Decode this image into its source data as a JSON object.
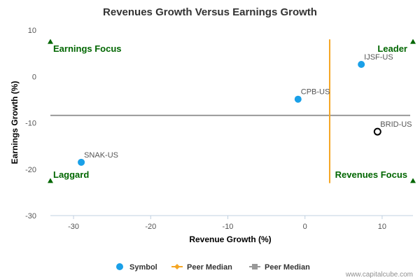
{
  "chart_data": {
    "type": "scatter",
    "title": "Revenues Growth Versus Earnings Growth",
    "xlabel": "Revenue Growth (%)",
    "ylabel": "Earnings Growth (%)",
    "xlim": [
      -33,
      14
    ],
    "ylim": [
      -30,
      10
    ],
    "xticks": [
      -30,
      -20,
      -10,
      0,
      10
    ],
    "yticks": [
      10,
      0,
      -10,
      -20,
      -30
    ],
    "grid": false,
    "legend_position": "bottom",
    "points": [
      {
        "label": "SNAK-US",
        "x": -29.0,
        "y": -18.5,
        "style": "filled"
      },
      {
        "label": "CPB-US",
        "x": -0.9,
        "y": -4.9,
        "style": "filled"
      },
      {
        "label": "IJSF-US",
        "x": 7.3,
        "y": 2.6,
        "style": "filled"
      },
      {
        "label": "BRID-US",
        "x": 9.4,
        "y": -11.9,
        "style": "hollow"
      }
    ],
    "peer_median_x": 3.2,
    "peer_median_x_range": [
      -23,
      8
    ],
    "peer_median_y": -8.4,
    "quadrants": [
      {
        "label": "Earnings Focus",
        "position": "top-left"
      },
      {
        "label": "Leader",
        "position": "top-right"
      },
      {
        "label": "Laggard",
        "position": "bottom-left"
      },
      {
        "label": "Revenues Focus",
        "position": "bottom-right"
      }
    ],
    "legend": [
      {
        "label": "Symbol",
        "marker": "circle",
        "color": "#1aa0e8"
      },
      {
        "label": "Peer Median",
        "marker": "diamond-line",
        "color": "#f5a623"
      },
      {
        "label": "Peer Median",
        "marker": "square-line",
        "color": "#999999"
      }
    ],
    "colors": {
      "symbol": "#1aa0e8",
      "hollow_stroke": "#000000",
      "median_vertical": "#f5a623",
      "median_horizontal": "#999999",
      "quadrant_text": "#006600",
      "quadrant_marker": "#006600"
    }
  },
  "credit": "www.capitalcube.com"
}
